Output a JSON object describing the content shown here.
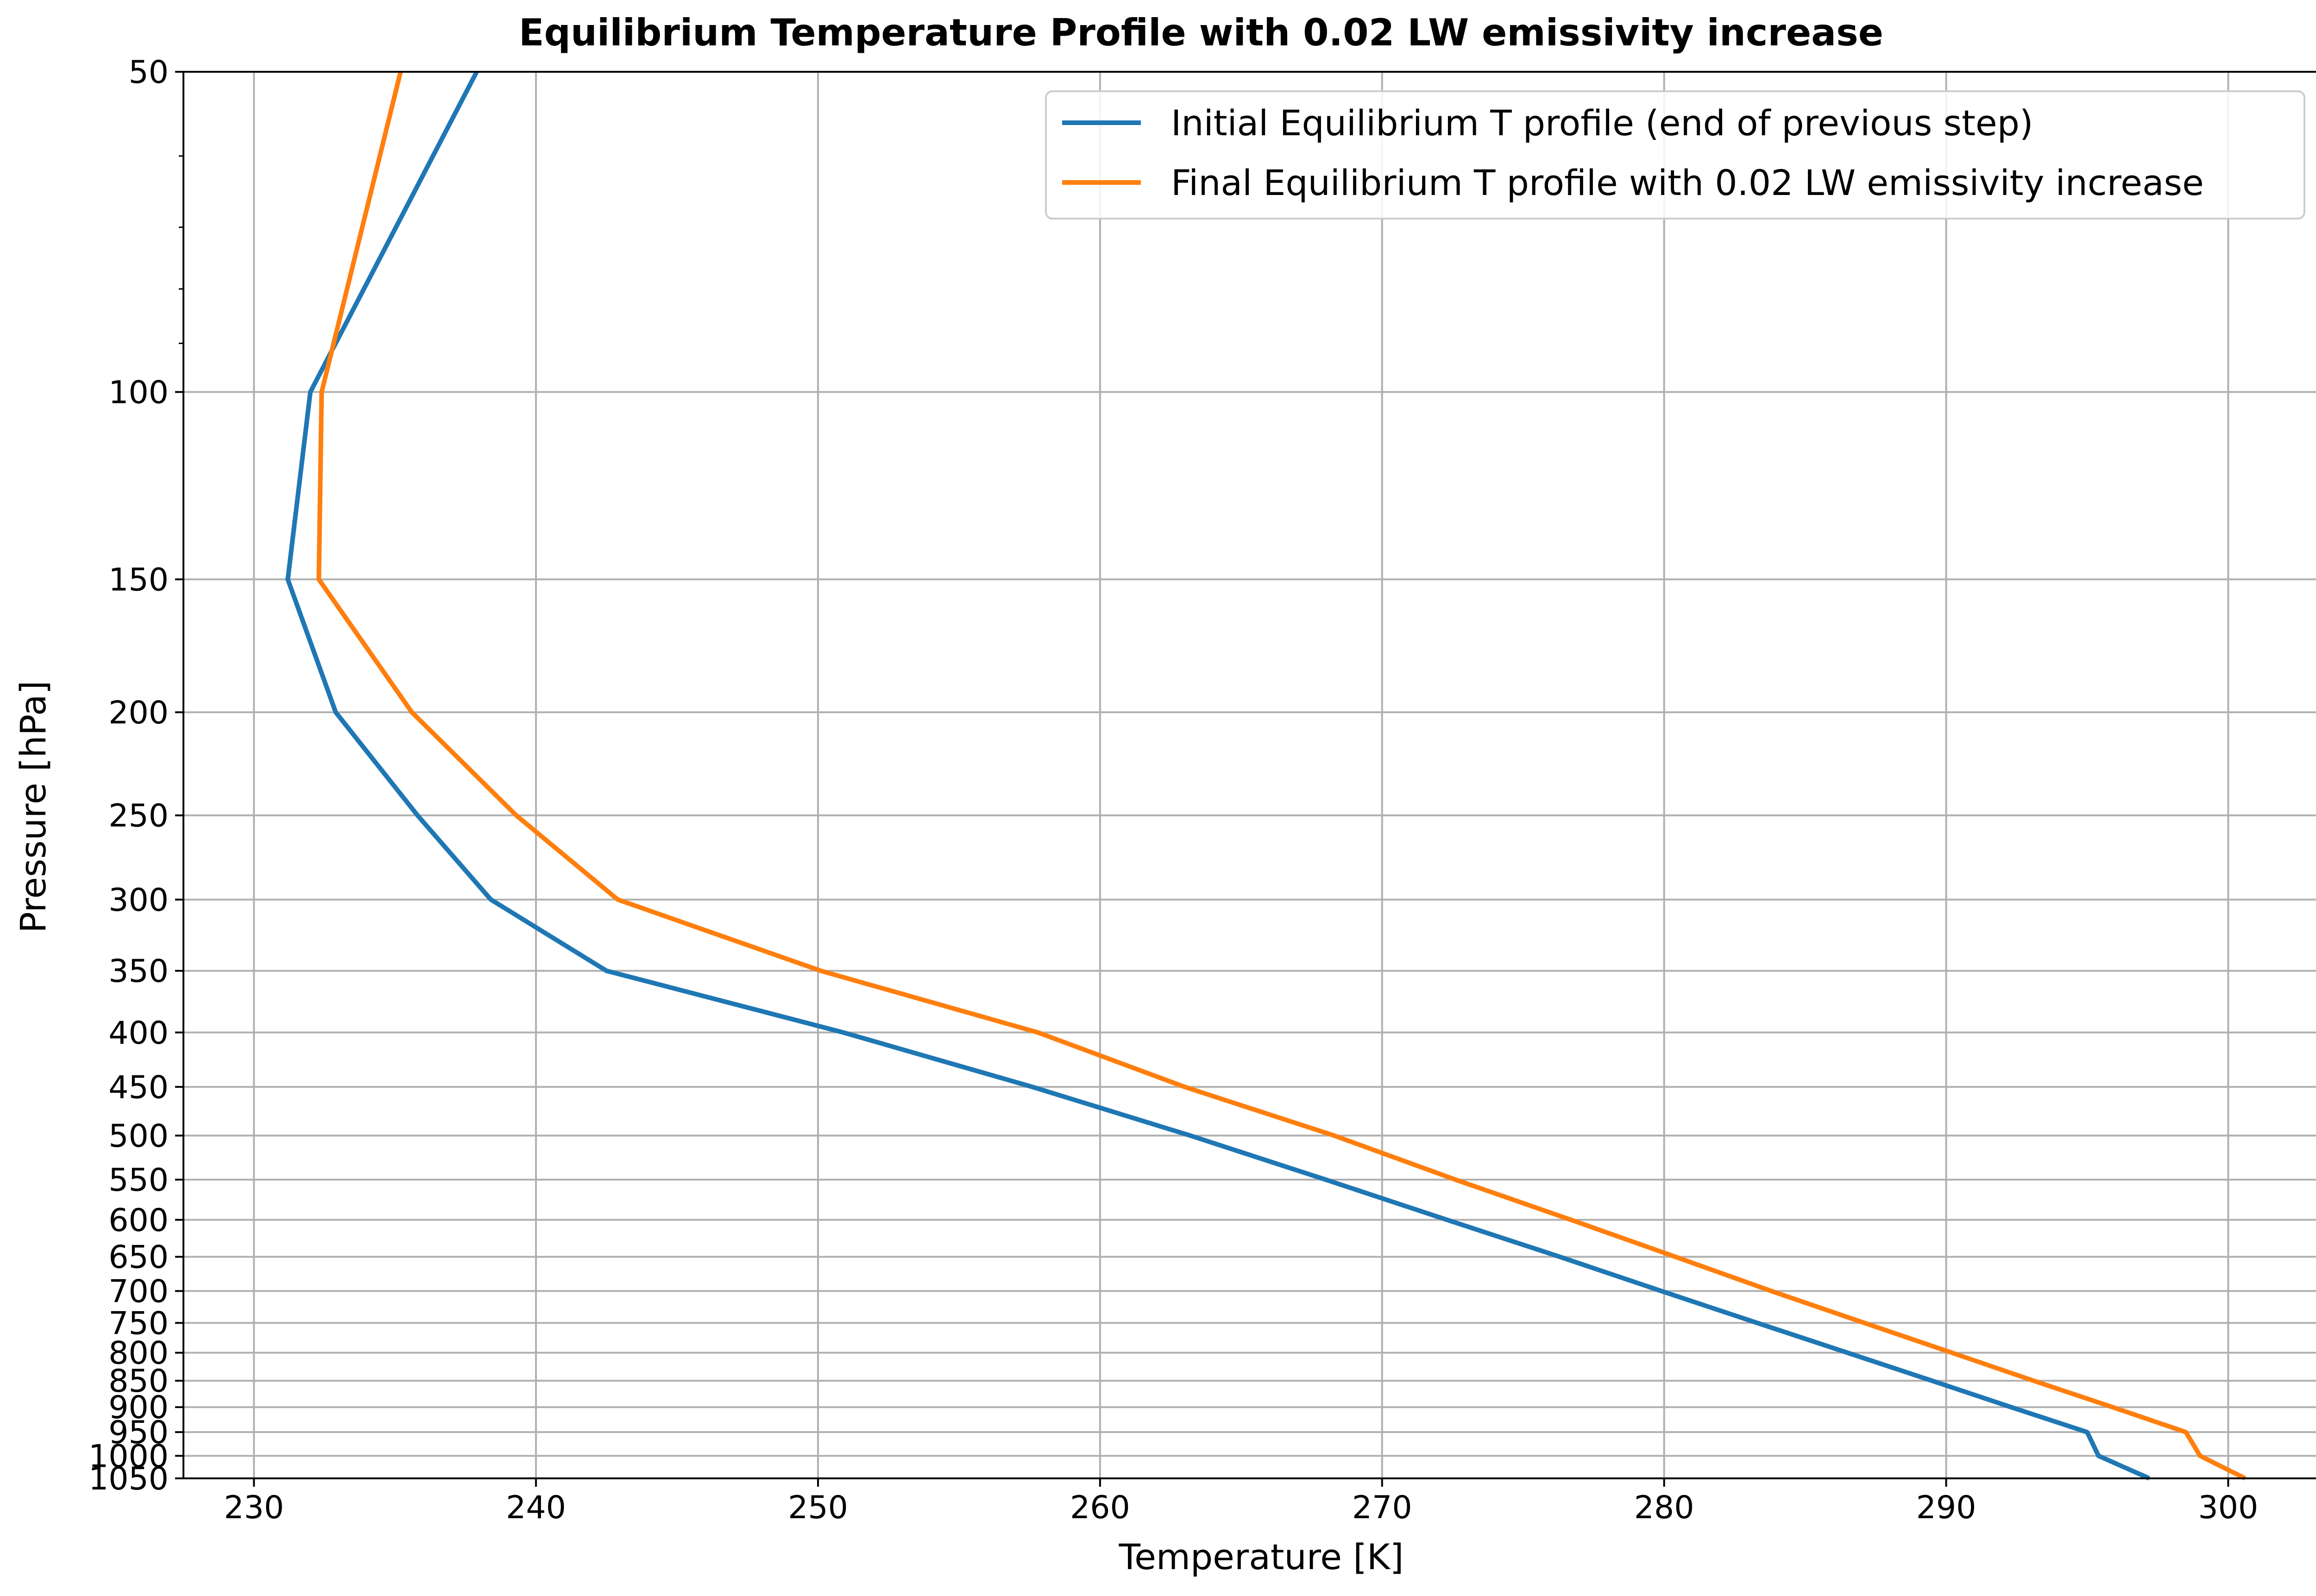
{
  "chart_data": {
    "type": "line",
    "title": "Equilibrium Temperature Profile with 0.02 LW emissivity increase",
    "xlabel": "Temperature [K]",
    "ylabel": "Pressure [hPa]",
    "xlim": [
      227.5,
      304
    ],
    "ylim": [
      1050,
      50
    ],
    "y_scale": "log",
    "y_inverted": true,
    "grid": true,
    "legend_position": "upper right",
    "x_ticks": [
      230,
      240,
      250,
      260,
      270,
      280,
      290,
      300
    ],
    "y_ticks": [
      50,
      100,
      150,
      200,
      250,
      300,
      350,
      400,
      450,
      500,
      550,
      600,
      650,
      700,
      750,
      800,
      850,
      900,
      950,
      1000,
      1050
    ],
    "series": [
      {
        "name": "Initial Equilibrium T profile (end of previous step)",
        "color": "#1f77b4",
        "points": [
          {
            "p": 50,
            "t": 237.9
          },
          {
            "p": 100,
            "t": 232.0
          },
          {
            "p": 150,
            "t": 231.2
          },
          {
            "p": 200,
            "t": 232.9
          },
          {
            "p": 250,
            "t": 235.8
          },
          {
            "p": 300,
            "t": 238.4
          },
          {
            "p": 350,
            "t": 242.5
          },
          {
            "p": 400,
            "t": 250.9
          },
          {
            "p": 450,
            "t": 257.6
          },
          {
            "p": 500,
            "t": 263.2
          },
          {
            "p": 550,
            "t": 268.0
          },
          {
            "p": 600,
            "t": 272.3
          },
          {
            "p": 650,
            "t": 276.3
          },
          {
            "p": 700,
            "t": 279.9
          },
          {
            "p": 750,
            "t": 283.3
          },
          {
            "p": 800,
            "t": 286.5
          },
          {
            "p": 850,
            "t": 289.5
          },
          {
            "p": 900,
            "t": 292.3
          },
          {
            "p": 950,
            "t": 295.0
          },
          {
            "p": 1000,
            "t": 295.4
          },
          {
            "p": 1050,
            "t": 297.2
          }
        ]
      },
      {
        "name": "Final Equilibrium T profile with 0.02 LW emissivity increase",
        "color": "#ff7f0e",
        "points": [
          {
            "p": 50,
            "t": 235.2
          },
          {
            "p": 100,
            "t": 232.4
          },
          {
            "p": 150,
            "t": 232.3
          },
          {
            "p": 200,
            "t": 235.6
          },
          {
            "p": 250,
            "t": 239.3
          },
          {
            "p": 300,
            "t": 242.9
          },
          {
            "p": 350,
            "t": 250.1
          },
          {
            "p": 400,
            "t": 257.8
          },
          {
            "p": 450,
            "t": 263.0
          },
          {
            "p": 500,
            "t": 268.3
          },
          {
            "p": 550,
            "t": 272.6
          },
          {
            "p": 600,
            "t": 276.7
          },
          {
            "p": 650,
            "t": 280.4
          },
          {
            "p": 700,
            "t": 283.8
          },
          {
            "p": 750,
            "t": 287.1
          },
          {
            "p": 800,
            "t": 290.2
          },
          {
            "p": 850,
            "t": 293.1
          },
          {
            "p": 900,
            "t": 295.9
          },
          {
            "p": 950,
            "t": 298.5
          },
          {
            "p": 1000,
            "t": 299.0
          },
          {
            "p": 1050,
            "t": 300.6
          }
        ]
      }
    ]
  }
}
